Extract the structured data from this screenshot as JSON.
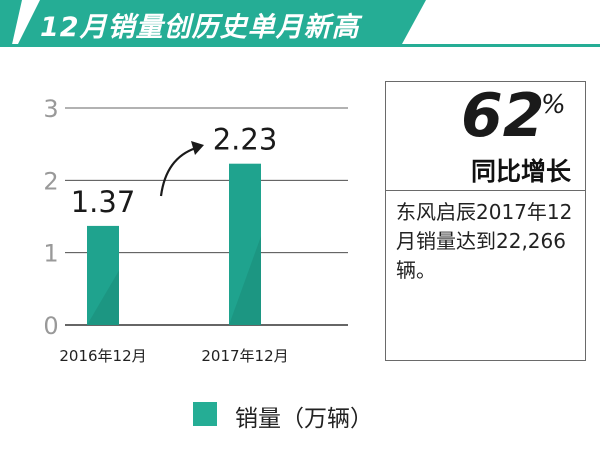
{
  "title": "12月销量创历史单月新高",
  "highlight": {
    "percent": "62",
    "percent_sign": "%",
    "label": "同比增长",
    "description": "东风启辰2017年12月销量达到22,266辆。"
  },
  "colors": {
    "accent": "#25ad95",
    "bar": "#1fa38e",
    "bar_dark": "#187f6e",
    "grid": "#333333"
  },
  "chart_data": {
    "type": "bar",
    "categories": [
      "2016年12月",
      "2017年12月"
    ],
    "values": [
      1.37,
      2.23
    ],
    "data_labels": [
      "1.37",
      "2.23"
    ],
    "ylim": [
      0,
      3
    ],
    "yticks": [
      0,
      1,
      2,
      3
    ],
    "ytick_labels": [
      "0",
      "1",
      "2",
      "3"
    ],
    "grid": true,
    "legend": {
      "label": "销量（万辆）",
      "placement": "bottom"
    }
  }
}
